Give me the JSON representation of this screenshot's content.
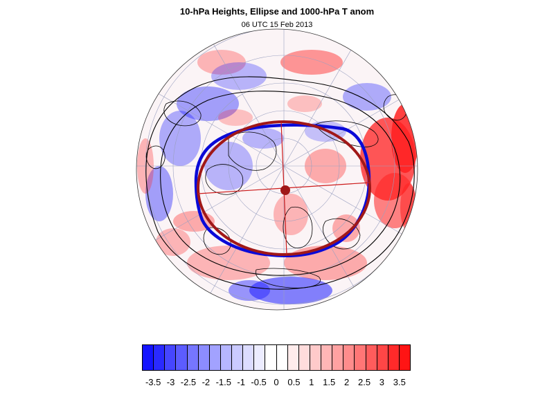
{
  "title": "10-hPa Heights, Ellipse and 1000-hPa T anom",
  "subtitle": "06 UTC 15 Feb 2013",
  "map": {
    "projection": "polar orthographic (north pole)",
    "colors": {
      "anomaly_blue": "#1f1fff",
      "anomaly_red": "#ff2020",
      "height_contour": "#000000",
      "ellipse": "#a01818",
      "vortex_edge": "#0a0ad8",
      "axis_line": "#cc1a1a",
      "graticule": "#9aa0c0"
    }
  },
  "colorbar": {
    "colors": [
      "#1414ff",
      "#2a2aff",
      "#4646ff",
      "#5c5cff",
      "#7676ff",
      "#8c8cff",
      "#a2a2ff",
      "#b6b6ff",
      "#cacaff",
      "#dcdcff",
      "#ececff",
      "#ffffff",
      "#ffffff",
      "#ffecec",
      "#ffdcdc",
      "#ffcaca",
      "#ffb6b6",
      "#ffa2a2",
      "#ff8c8c",
      "#ff7676",
      "#ff5c5c",
      "#ff4646",
      "#ff2a2a",
      "#ff1414"
    ],
    "labels": [
      "-3.5",
      "-3",
      "-2.5",
      "-2",
      "-1.5",
      "-1",
      "-0.5",
      "0",
      "0.5",
      "1",
      "1.5",
      "2",
      "2.5",
      "3",
      "3.5"
    ]
  }
}
